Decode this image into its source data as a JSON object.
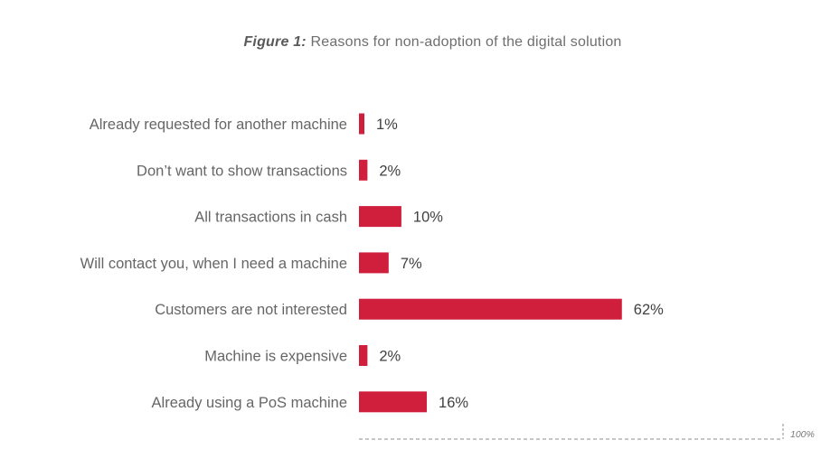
{
  "figure": {
    "prefix": "Figure 1:",
    "title": "Reasons for non-adoption of the digital solution"
  },
  "colors": {
    "bar": "#cf1f3c",
    "label_text": "#666666",
    "value_text": "#404040",
    "reference_line": "#8c8c8c"
  },
  "chart_data": {
    "type": "bar",
    "orientation": "horizontal",
    "title": "Figure 1: Reasons for non-adoption of the digital solution",
    "categories": [
      "Already requested for another machine",
      "Don’t want to show transactions",
      "All transactions in cash",
      "Will contact you, when I need a machine",
      "Customers are not interested",
      "Machine is expensive",
      "Already using a PoS machine"
    ],
    "values": [
      1,
      2,
      10,
      7,
      62,
      2,
      16
    ],
    "value_labels": [
      "1%",
      "2%",
      "10%",
      "7%",
      "62%",
      "2%",
      "16%"
    ],
    "unit": "%",
    "xlim": [
      0,
      100
    ],
    "reference_label": "100%",
    "grid": false,
    "legend": "none"
  }
}
